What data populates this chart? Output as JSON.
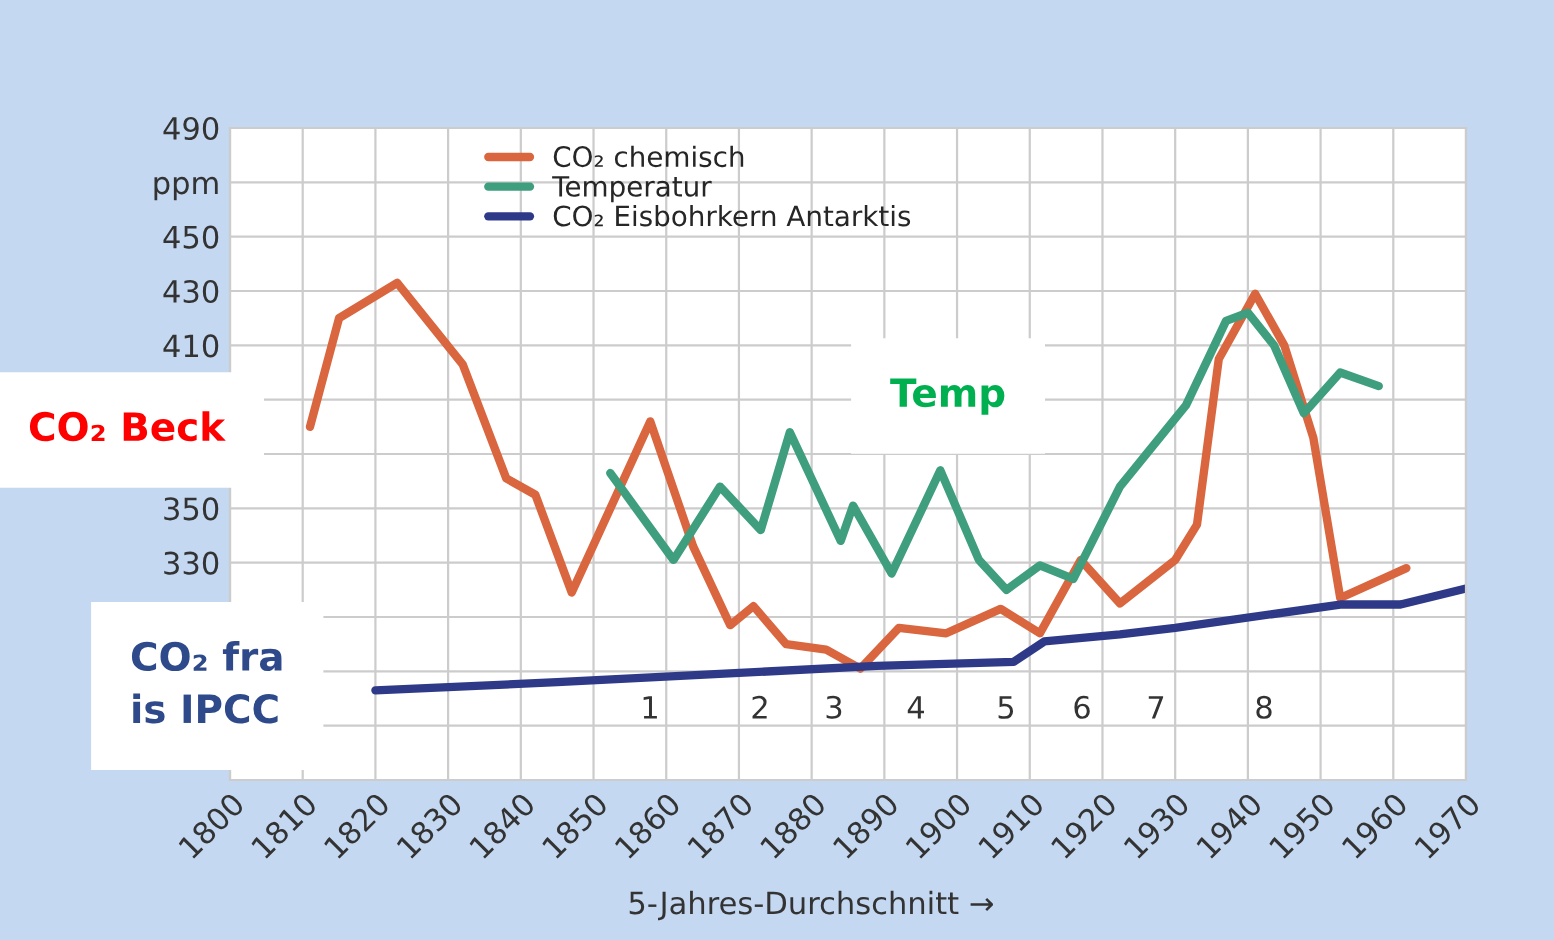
{
  "chart_data": {
    "type": "line",
    "xlabel": "5-Jahres-Durchschnitt →",
    "xlim": [
      1800,
      1970
    ],
    "xticks": [
      1800,
      1810,
      1820,
      1830,
      1840,
      1850,
      1860,
      1870,
      1880,
      1890,
      1900,
      1910,
      1920,
      1930,
      1940,
      1950,
      1960,
      1970
    ],
    "ylim": [
      250,
      490
    ],
    "yticks": [
      {
        "value": 250,
        "label": null
      },
      {
        "value": 270,
        "label": null
      },
      {
        "value": 290,
        "label": null
      },
      {
        "value": 310,
        "label": null
      },
      330,
      350,
      {
        "value": 370,
        "label": null
      },
      {
        "value": 390,
        "label": null
      },
      410,
      430,
      450,
      {
        "value": 470,
        "label": "ppm"
      },
      490
    ],
    "grid": true,
    "legend": "top",
    "series": [
      {
        "name": "CO₂ chemisch",
        "color": "#d9663e",
        "x": [
          1811,
          1815,
          1823,
          1832,
          1838,
          1842,
          1847,
          1857.8,
          1863.7,
          1868.8,
          1872,
          1876.5,
          1882,
          1886.7,
          1892,
          1898.5,
          1906,
          1911.4,
          1917,
          1922.4,
          1930,
          1933,
          1936,
          1941,
          1945,
          1949,
          1952.7,
          1961.8
        ],
        "values": [
          380,
          420,
          433,
          403,
          361,
          355,
          319,
          382,
          336,
          307,
          314,
          300,
          298,
          291,
          306,
          304,
          313,
          304,
          331,
          315,
          331,
          344,
          405,
          429,
          410,
          376,
          317,
          328
        ]
      },
      {
        "name": "Temperatur",
        "color": "#3f9e7e",
        "x": [
          1852.3,
          1861,
          1867.4,
          1873,
          1877,
          1884,
          1885.7,
          1891,
          1897.7,
          1903,
          1906.8,
          1911.4,
          1916,
          1922.4,
          1931.5,
          1937,
          1940,
          1943.6,
          1947.7,
          1952.7,
          1958
        ],
        "values": [
          363,
          331,
          358,
          342,
          378,
          338,
          351,
          326,
          364,
          331,
          320,
          329,
          324,
          358,
          388,
          419,
          422,
          410,
          385,
          400,
          395
        ]
      },
      {
        "name": "CO₂ Eisbohrkern Antarktis",
        "color": "#2e3a87",
        "x": [
          1820,
          1845,
          1889,
          1907.8,
          1912,
          1922.4,
          1930,
          1952.7,
          1961,
          1970
        ],
        "values": [
          283,
          286,
          292,
          293.5,
          301,
          303.6,
          306,
          314.6,
          314.6,
          320.5
        ]
      }
    ],
    "annotations": [
      "CO₂ Beck",
      "Temp",
      "CO₂ fra\nis IPCC",
      "1",
      "2",
      "3",
      "4",
      "5",
      "6",
      "7",
      "8"
    ]
  }
}
